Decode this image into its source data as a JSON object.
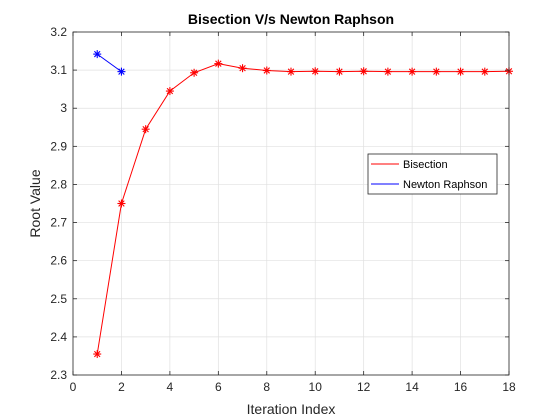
{
  "chart_data": {
    "type": "line",
    "title": "Bisection V/s Newton Raphson",
    "xlabel": "Iteration Index",
    "ylabel": "Root Value",
    "xlim": [
      0,
      18
    ],
    "ylim": [
      2.3,
      3.2
    ],
    "xticks": [
      0,
      2,
      4,
      6,
      8,
      10,
      12,
      14,
      16,
      18
    ],
    "xtick_labels": [
      "0",
      "2",
      "4",
      "6",
      "8",
      "10",
      "12",
      "14",
      "16",
      "18"
    ],
    "yticks": [
      2.3,
      2.4,
      2.5,
      2.6,
      2.7,
      2.8,
      2.9,
      3.0,
      3.1,
      3.2
    ],
    "ytick_labels": [
      "2.3",
      "2.4",
      "2.5",
      "2.6",
      "2.7",
      "2.8",
      "2.9",
      "3",
      "3.1",
      "3.2"
    ],
    "grid": true,
    "legend_position": "right",
    "series": [
      {
        "name": "Bisection",
        "color": "#ff0000",
        "marker": "asterisk",
        "x": [
          1,
          2,
          3,
          4,
          5,
          6,
          7,
          8,
          9,
          10,
          11,
          12,
          13,
          14,
          15,
          16,
          17,
          18
        ],
        "y": [
          2.355,
          2.75,
          2.945,
          3.045,
          3.093,
          3.117,
          3.105,
          3.099,
          3.096,
          3.097,
          3.096,
          3.097,
          3.096,
          3.096,
          3.096,
          3.096,
          3.096,
          3.097
        ]
      },
      {
        "name": "Newton Raphson",
        "color": "#0000ff",
        "marker": "asterisk",
        "x": [
          1,
          2
        ],
        "y": [
          3.142,
          3.096
        ]
      }
    ]
  }
}
